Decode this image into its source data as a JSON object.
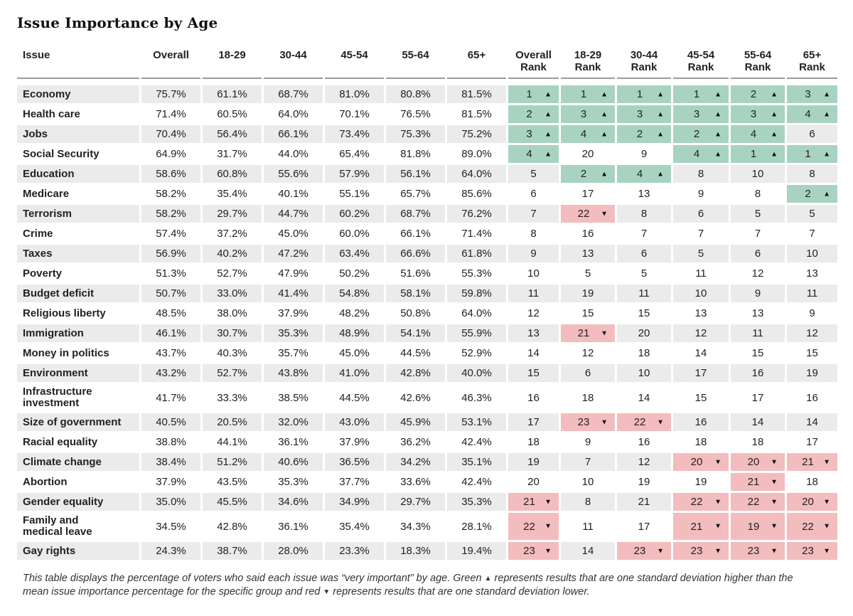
{
  "title": "Issue Importance by Age",
  "columns": {
    "issue": "Issue",
    "pct": [
      "Overall",
      "18-29",
      "30-44",
      "45-54",
      "55-64",
      "65+"
    ],
    "rank": [
      [
        "Overall",
        "Rank"
      ],
      [
        "18-29",
        "Rank"
      ],
      [
        "30-44",
        "Rank"
      ],
      [
        "45-54",
        "Rank"
      ],
      [
        "55-64",
        "Rank"
      ],
      [
        "65+",
        "Rank"
      ]
    ]
  },
  "colors": {
    "green": "#a8d3c1",
    "red": "#f3bcbe",
    "stripe": "#ebebeb"
  },
  "icons": {
    "up": "up-triangle-icon",
    "down": "down-triangle-icon"
  },
  "chart_data": {
    "type": "table",
    "title": "Issue Importance by Age",
    "rows": [
      {
        "issue": [
          "Economy"
        ],
        "pct": [
          "75.7%",
          "61.1%",
          "68.7%",
          "81.0%",
          "80.8%",
          "81.5%"
        ],
        "rank": [
          1,
          1,
          1,
          1,
          2,
          3
        ],
        "flag": [
          "up",
          "up",
          "up",
          "up",
          "up",
          "up"
        ]
      },
      {
        "issue": [
          "Health care"
        ],
        "pct": [
          "71.4%",
          "60.5%",
          "64.0%",
          "70.1%",
          "76.5%",
          "81.5%"
        ],
        "rank": [
          2,
          3,
          3,
          3,
          3,
          4
        ],
        "flag": [
          "up",
          "up",
          "up",
          "up",
          "up",
          "up"
        ]
      },
      {
        "issue": [
          "Jobs"
        ],
        "pct": [
          "70.4%",
          "56.4%",
          "66.1%",
          "73.4%",
          "75.3%",
          "75.2%"
        ],
        "rank": [
          3,
          4,
          2,
          2,
          4,
          6
        ],
        "flag": [
          "up",
          "up",
          "up",
          "up",
          "up",
          ""
        ]
      },
      {
        "issue": [
          "Social Security"
        ],
        "pct": [
          "64.9%",
          "31.7%",
          "44.0%",
          "65.4%",
          "81.8%",
          "89.0%"
        ],
        "rank": [
          4,
          20,
          9,
          4,
          1,
          1
        ],
        "flag": [
          "up",
          "",
          "",
          "up",
          "up",
          "up"
        ]
      },
      {
        "issue": [
          "Education"
        ],
        "pct": [
          "58.6%",
          "60.8%",
          "55.6%",
          "57.9%",
          "56.1%",
          "64.0%"
        ],
        "rank": [
          5,
          2,
          4,
          8,
          10,
          8
        ],
        "flag": [
          "",
          "up",
          "up",
          "",
          "",
          ""
        ]
      },
      {
        "issue": [
          "Medicare"
        ],
        "pct": [
          "58.2%",
          "35.4%",
          "40.1%",
          "55.1%",
          "65.7%",
          "85.6%"
        ],
        "rank": [
          6,
          17,
          13,
          9,
          8,
          2
        ],
        "flag": [
          "",
          "",
          "",
          "",
          "",
          "up"
        ]
      },
      {
        "issue": [
          "Terrorism"
        ],
        "pct": [
          "58.2%",
          "29.7%",
          "44.7%",
          "60.2%",
          "68.7%",
          "76.2%"
        ],
        "rank": [
          7,
          22,
          8,
          6,
          5,
          5
        ],
        "flag": [
          "",
          "down",
          "",
          "",
          "",
          ""
        ]
      },
      {
        "issue": [
          "Crime"
        ],
        "pct": [
          "57.4%",
          "37.2%",
          "45.0%",
          "60.0%",
          "66.1%",
          "71.4%"
        ],
        "rank": [
          8,
          16,
          7,
          7,
          7,
          7
        ],
        "flag": [
          "",
          "",
          "",
          "",
          "",
          ""
        ]
      },
      {
        "issue": [
          "Taxes"
        ],
        "pct": [
          "56.9%",
          "40.2%",
          "47.2%",
          "63.4%",
          "66.6%",
          "61.8%"
        ],
        "rank": [
          9,
          13,
          6,
          5,
          6,
          10
        ],
        "flag": [
          "",
          "",
          "",
          "",
          "",
          ""
        ]
      },
      {
        "issue": [
          "Poverty"
        ],
        "pct": [
          "51.3%",
          "52.7%",
          "47.9%",
          "50.2%",
          "51.6%",
          "55.3%"
        ],
        "rank": [
          10,
          5,
          5,
          11,
          12,
          13
        ],
        "flag": [
          "",
          "",
          "",
          "",
          "",
          ""
        ]
      },
      {
        "issue": [
          "Budget deficit"
        ],
        "pct": [
          "50.7%",
          "33.0%",
          "41.4%",
          "54.8%",
          "58.1%",
          "59.8%"
        ],
        "rank": [
          11,
          19,
          11,
          10,
          9,
          11
        ],
        "flag": [
          "",
          "",
          "",
          "",
          "",
          ""
        ]
      },
      {
        "issue": [
          "Religious liberty"
        ],
        "pct": [
          "48.5%",
          "38.0%",
          "37.9%",
          "48.2%",
          "50.8%",
          "64.0%"
        ],
        "rank": [
          12,
          15,
          15,
          13,
          13,
          9
        ],
        "flag": [
          "",
          "",
          "",
          "",
          "",
          ""
        ]
      },
      {
        "issue": [
          "Immigration"
        ],
        "pct": [
          "46.1%",
          "30.7%",
          "35.3%",
          "48.9%",
          "54.1%",
          "55.9%"
        ],
        "rank": [
          13,
          21,
          20,
          12,
          11,
          12
        ],
        "flag": [
          "",
          "down",
          "",
          "",
          "",
          ""
        ]
      },
      {
        "issue": [
          "Money in politics"
        ],
        "pct": [
          "43.7%",
          "40.3%",
          "35.7%",
          "45.0%",
          "44.5%",
          "52.9%"
        ],
        "rank": [
          14,
          12,
          18,
          14,
          15,
          15
        ],
        "flag": [
          "",
          "",
          "",
          "",
          "",
          ""
        ]
      },
      {
        "issue": [
          "Environment"
        ],
        "pct": [
          "43.2%",
          "52.7%",
          "43.8%",
          "41.0%",
          "42.8%",
          "40.0%"
        ],
        "rank": [
          15,
          6,
          10,
          17,
          16,
          19
        ],
        "flag": [
          "",
          "",
          "",
          "",
          "",
          ""
        ]
      },
      {
        "issue": [
          "Infrastructure",
          "investment"
        ],
        "pct": [
          "41.7%",
          "33.3%",
          "38.5%",
          "44.5%",
          "42.6%",
          "46.3%"
        ],
        "rank": [
          16,
          18,
          14,
          15,
          17,
          16
        ],
        "flag": [
          "",
          "",
          "",
          "",
          "",
          ""
        ]
      },
      {
        "issue": [
          "Size of government"
        ],
        "pct": [
          "40.5%",
          "20.5%",
          "32.0%",
          "43.0%",
          "45.9%",
          "53.1%"
        ],
        "rank": [
          17,
          23,
          22,
          16,
          14,
          14
        ],
        "flag": [
          "",
          "down",
          "down",
          "",
          "",
          ""
        ]
      },
      {
        "issue": [
          "Racial equality"
        ],
        "pct": [
          "38.8%",
          "44.1%",
          "36.1%",
          "37.9%",
          "36.2%",
          "42.4%"
        ],
        "rank": [
          18,
          9,
          16,
          18,
          18,
          17
        ],
        "flag": [
          "",
          "",
          "",
          "",
          "",
          ""
        ]
      },
      {
        "issue": [
          "Climate change"
        ],
        "pct": [
          "38.4%",
          "51.2%",
          "40.6%",
          "36.5%",
          "34.2%",
          "35.1%"
        ],
        "rank": [
          19,
          7,
          12,
          20,
          20,
          21
        ],
        "flag": [
          "",
          "",
          "",
          "down",
          "down",
          "down"
        ]
      },
      {
        "issue": [
          "Abortion"
        ],
        "pct": [
          "37.9%",
          "43.5%",
          "35.3%",
          "37.7%",
          "33.6%",
          "42.4%"
        ],
        "rank": [
          20,
          10,
          19,
          19,
          21,
          18
        ],
        "flag": [
          "",
          "",
          "",
          "",
          "down",
          ""
        ]
      },
      {
        "issue": [
          "Gender equality"
        ],
        "pct": [
          "35.0%",
          "45.5%",
          "34.6%",
          "34.9%",
          "29.7%",
          "35.3%"
        ],
        "rank": [
          21,
          8,
          21,
          22,
          22,
          20
        ],
        "flag": [
          "down",
          "",
          "",
          "down",
          "down",
          "down"
        ]
      },
      {
        "issue": [
          "Family and",
          "medical leave"
        ],
        "pct": [
          "34.5%",
          "42.8%",
          "36.1%",
          "35.4%",
          "34.3%",
          "28.1%"
        ],
        "rank": [
          22,
          11,
          17,
          21,
          19,
          22
        ],
        "flag": [
          "down",
          "",
          "",
          "down",
          "down",
          "down"
        ]
      },
      {
        "issue": [
          "Gay rights"
        ],
        "pct": [
          "24.3%",
          "38.7%",
          "28.0%",
          "23.3%",
          "18.3%",
          "19.4%"
        ],
        "rank": [
          23,
          14,
          23,
          23,
          23,
          23
        ],
        "flag": [
          "down",
          "",
          "down",
          "down",
          "down",
          "down"
        ]
      }
    ]
  },
  "footnote": {
    "part1": "This table displays the percentage of voters who said each issue was “very important” by age. Green",
    "part2": "represents results that are one standard deviation higher than the mean issue importance percentage for the specific group and red",
    "part3": "represents results that are one standard deviation lower."
  }
}
